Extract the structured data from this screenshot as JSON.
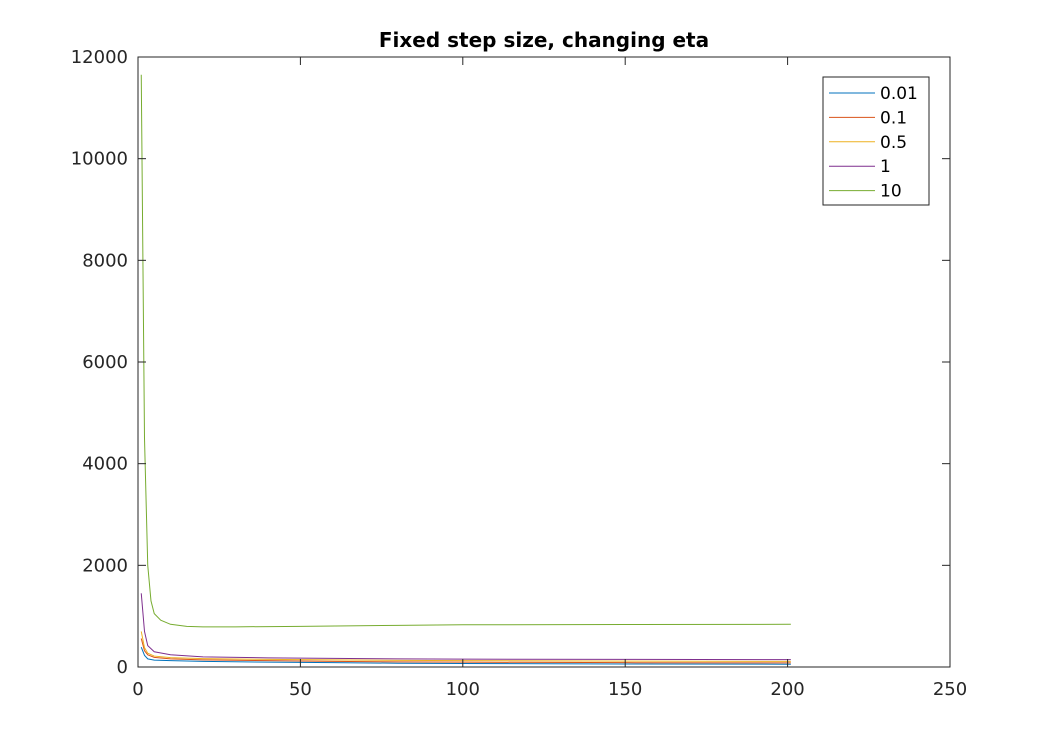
{
  "chart_data": {
    "type": "line",
    "title": "Fixed step size, changing eta",
    "xlabel": "",
    "ylabel": "",
    "xlim": [
      0,
      250
    ],
    "ylim": [
      0,
      12000
    ],
    "xticks": [
      0,
      50,
      100,
      150,
      200,
      250
    ],
    "yticks": [
      0,
      2000,
      4000,
      6000,
      8000,
      10000,
      12000
    ],
    "grid": false,
    "legend_position": "top-right",
    "series": [
      {
        "name": "0.01",
        "color": "#0072BD",
        "points": [
          [
            1,
            390
          ],
          [
            2,
            230
          ],
          [
            3,
            160
          ],
          [
            5,
            135
          ],
          [
            10,
            125
          ],
          [
            20,
            110
          ],
          [
            40,
            95
          ],
          [
            60,
            85
          ],
          [
            80,
            75
          ],
          [
            100,
            70
          ],
          [
            150,
            60
          ],
          [
            201,
            55
          ]
        ]
      },
      {
        "name": "0.1",
        "color": "#D95319",
        "points": [
          [
            1,
            560
          ],
          [
            2,
            320
          ],
          [
            3,
            240
          ],
          [
            5,
            190
          ],
          [
            10,
            160
          ],
          [
            20,
            140
          ],
          [
            40,
            125
          ],
          [
            60,
            110
          ],
          [
            80,
            100
          ],
          [
            100,
            95
          ],
          [
            150,
            85
          ],
          [
            201,
            80
          ]
        ]
      },
      {
        "name": "0.5",
        "color": "#EDB120",
        "points": [
          [
            1,
            700
          ],
          [
            2,
            380
          ],
          [
            3,
            270
          ],
          [
            5,
            215
          ],
          [
            10,
            185
          ],
          [
            20,
            165
          ],
          [
            40,
            150
          ],
          [
            60,
            140
          ],
          [
            80,
            130
          ],
          [
            100,
            125
          ],
          [
            150,
            115
          ],
          [
            201,
            110
          ]
        ]
      },
      {
        "name": "1",
        "color": "#7E2F8E",
        "points": [
          [
            1,
            1450
          ],
          [
            2,
            700
          ],
          [
            3,
            420
          ],
          [
            5,
            300
          ],
          [
            10,
            240
          ],
          [
            20,
            200
          ],
          [
            40,
            180
          ],
          [
            60,
            170
          ],
          [
            80,
            160
          ],
          [
            100,
            155
          ],
          [
            150,
            150
          ],
          [
            201,
            145
          ]
        ]
      },
      {
        "name": "10",
        "color": "#77AC30",
        "points": [
          [
            1,
            11650
          ],
          [
            2,
            4500
          ],
          [
            3,
            2000
          ],
          [
            4,
            1300
          ],
          [
            5,
            1050
          ],
          [
            7,
            920
          ],
          [
            10,
            840
          ],
          [
            15,
            800
          ],
          [
            20,
            790
          ],
          [
            30,
            790
          ],
          [
            50,
            800
          ],
          [
            80,
            820
          ],
          [
            100,
            830
          ],
          [
            150,
            835
          ],
          [
            201,
            840
          ]
        ]
      }
    ]
  }
}
